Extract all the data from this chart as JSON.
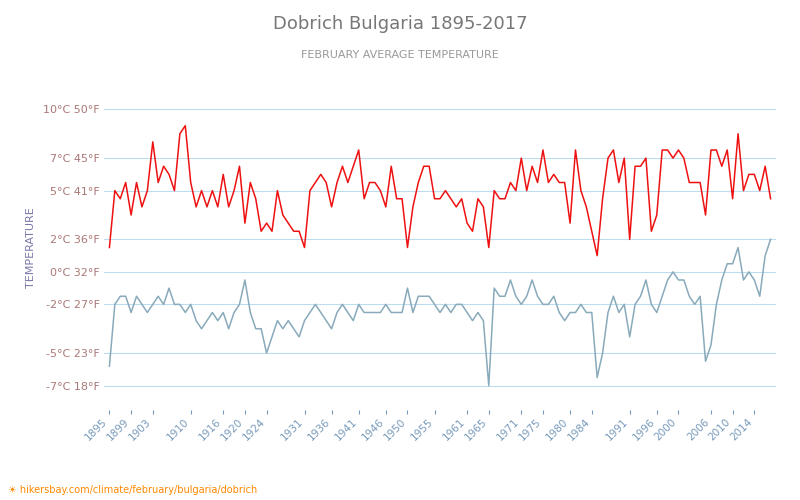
{
  "title": "Dobrich Bulgaria 1895-2017",
  "subtitle": "FEBRUARY AVERAGE TEMPERATURE",
  "ylabel": "TEMPERATURE",
  "xlabel_url": "hikersbay.com/climate/february/bulgaria/dobrich",
  "y_ticks_c": [
    -7,
    -5,
    -2,
    0,
    2,
    5,
    7,
    10
  ],
  "y_ticks_f": [
    18,
    23,
    27,
    32,
    36,
    41,
    45,
    50
  ],
  "ylim": [
    -8.5,
    11.5
  ],
  "x_tick_labels": [
    "1895",
    "1899",
    "1903",
    "1910",
    "1916",
    "1920",
    "1924",
    "1931",
    "1936",
    "1941",
    "1946",
    "1950",
    "1955",
    "1961",
    "1965",
    "1971",
    "1975",
    "1980",
    "1984",
    "1991",
    "1996",
    "2000",
    "2006",
    "2010",
    "2014"
  ],
  "title_color": "#777777",
  "subtitle_color": "#999999",
  "ylabel_color": "#7777aa",
  "ytick_label_color": "#aa7777",
  "xtick_label_color": "#7799bb",
  "grid_color": "#bbddee",
  "day_line_color": "#ee1111",
  "night_line_color": "#88aabb",
  "background_color": "#ffffff",
  "years": [
    1895,
    1896,
    1897,
    1898,
    1899,
    1900,
    1901,
    1902,
    1903,
    1904,
    1905,
    1906,
    1907,
    1908,
    1909,
    1910,
    1911,
    1912,
    1913,
    1914,
    1915,
    1916,
    1917,
    1918,
    1919,
    1920,
    1921,
    1922,
    1923,
    1924,
    1925,
    1926,
    1927,
    1928,
    1929,
    1930,
    1931,
    1932,
    1933,
    1934,
    1935,
    1936,
    1937,
    1938,
    1939,
    1940,
    1941,
    1942,
    1943,
    1944,
    1945,
    1946,
    1947,
    1948,
    1949,
    1950,
    1951,
    1952,
    1953,
    1954,
    1955,
    1956,
    1957,
    1958,
    1959,
    1960,
    1961,
    1962,
    1963,
    1964,
    1965,
    1966,
    1967,
    1968,
    1969,
    1970,
    1971,
    1972,
    1973,
    1974,
    1975,
    1976,
    1977,
    1978,
    1979,
    1980,
    1981,
    1982,
    1983,
    1984,
    1985,
    1986,
    1987,
    1988,
    1989,
    1990,
    1991,
    1992,
    1993,
    1994,
    1995,
    1996,
    1997,
    1998,
    1999,
    2000,
    2001,
    2002,
    2003,
    2004,
    2005,
    2006,
    2007,
    2008,
    2009,
    2010,
    2011,
    2012,
    2013,
    2014,
    2015,
    2016,
    2017
  ],
  "day_temps": [
    1.5,
    5.0,
    4.5,
    5.5,
    3.5,
    5.5,
    4.0,
    5.0,
    8.0,
    5.5,
    6.5,
    6.0,
    5.0,
    8.5,
    9.0,
    5.5,
    4.0,
    5.0,
    4.0,
    5.0,
    4.0,
    6.0,
    4.0,
    5.0,
    6.5,
    3.0,
    5.5,
    4.5,
    2.5,
    3.0,
    2.5,
    5.0,
    3.5,
    3.0,
    2.5,
    2.5,
    1.5,
    5.0,
    5.5,
    6.0,
    5.5,
    4.0,
    5.5,
    6.5,
    5.5,
    6.5,
    7.5,
    4.5,
    5.5,
    5.5,
    5.0,
    4.0,
    6.5,
    4.5,
    4.5,
    1.5,
    4.0,
    5.5,
    6.5,
    6.5,
    4.5,
    4.5,
    5.0,
    4.5,
    4.0,
    4.5,
    3.0,
    2.5,
    4.5,
    4.0,
    1.5,
    5.0,
    4.5,
    4.5,
    5.5,
    5.0,
    7.0,
    5.0,
    6.5,
    5.5,
    7.5,
    5.5,
    6.0,
    5.5,
    5.5,
    3.0,
    7.5,
    5.0,
    4.0,
    2.5,
    1.0,
    4.5,
    7.0,
    7.5,
    5.5,
    7.0,
    2.0,
    6.5,
    6.5,
    7.0,
    2.5,
    3.5,
    7.5,
    7.5,
    7.0,
    7.5,
    7.0,
    5.5,
    5.5,
    5.5,
    3.5,
    7.5,
    7.5,
    6.5,
    7.5,
    4.5,
    8.5,
    5.0,
    6.0,
    6.0,
    5.0,
    6.5,
    4.5
  ],
  "night_temps": [
    -5.8,
    -2.0,
    -1.5,
    -1.5,
    -2.5,
    -1.5,
    -2.0,
    -2.5,
    -2.0,
    -1.5,
    -2.0,
    -1.0,
    -2.0,
    -2.0,
    -2.5,
    -2.0,
    -3.0,
    -3.5,
    -3.0,
    -2.5,
    -3.0,
    -2.5,
    -3.5,
    -2.5,
    -2.0,
    -0.5,
    -2.5,
    -3.5,
    -3.5,
    -5.0,
    -4.0,
    -3.0,
    -3.5,
    -3.0,
    -3.5,
    -4.0,
    -3.0,
    -2.5,
    -2.0,
    -2.5,
    -3.0,
    -3.5,
    -2.5,
    -2.0,
    -2.5,
    -3.0,
    -2.0,
    -2.5,
    -2.5,
    -2.5,
    -2.5,
    -2.0,
    -2.5,
    -2.5,
    -2.5,
    -1.0,
    -2.5,
    -1.5,
    -1.5,
    -1.5,
    -2.0,
    -2.5,
    -2.0,
    -2.5,
    -2.0,
    -2.0,
    -2.5,
    -3.0,
    -2.5,
    -3.0,
    -7.0,
    -1.0,
    -1.5,
    -1.5,
    -0.5,
    -1.5,
    -2.0,
    -1.5,
    -0.5,
    -1.5,
    -2.0,
    -2.0,
    -1.5,
    -2.5,
    -3.0,
    -2.5,
    -2.5,
    -2.0,
    -2.5,
    -2.5,
    -6.5,
    -5.0,
    -2.5,
    -1.5,
    -2.5,
    -2.0,
    -4.0,
    -2.0,
    -1.5,
    -0.5,
    -2.0,
    -2.5,
    -1.5,
    -0.5,
    0.0,
    -0.5,
    -0.5,
    -1.5,
    -2.0,
    -1.5,
    -5.5,
    -4.5,
    -2.0,
    -0.5,
    0.5,
    0.5,
    1.5,
    -0.5,
    0.0,
    -0.5,
    -1.5,
    1.0,
    2.0
  ]
}
